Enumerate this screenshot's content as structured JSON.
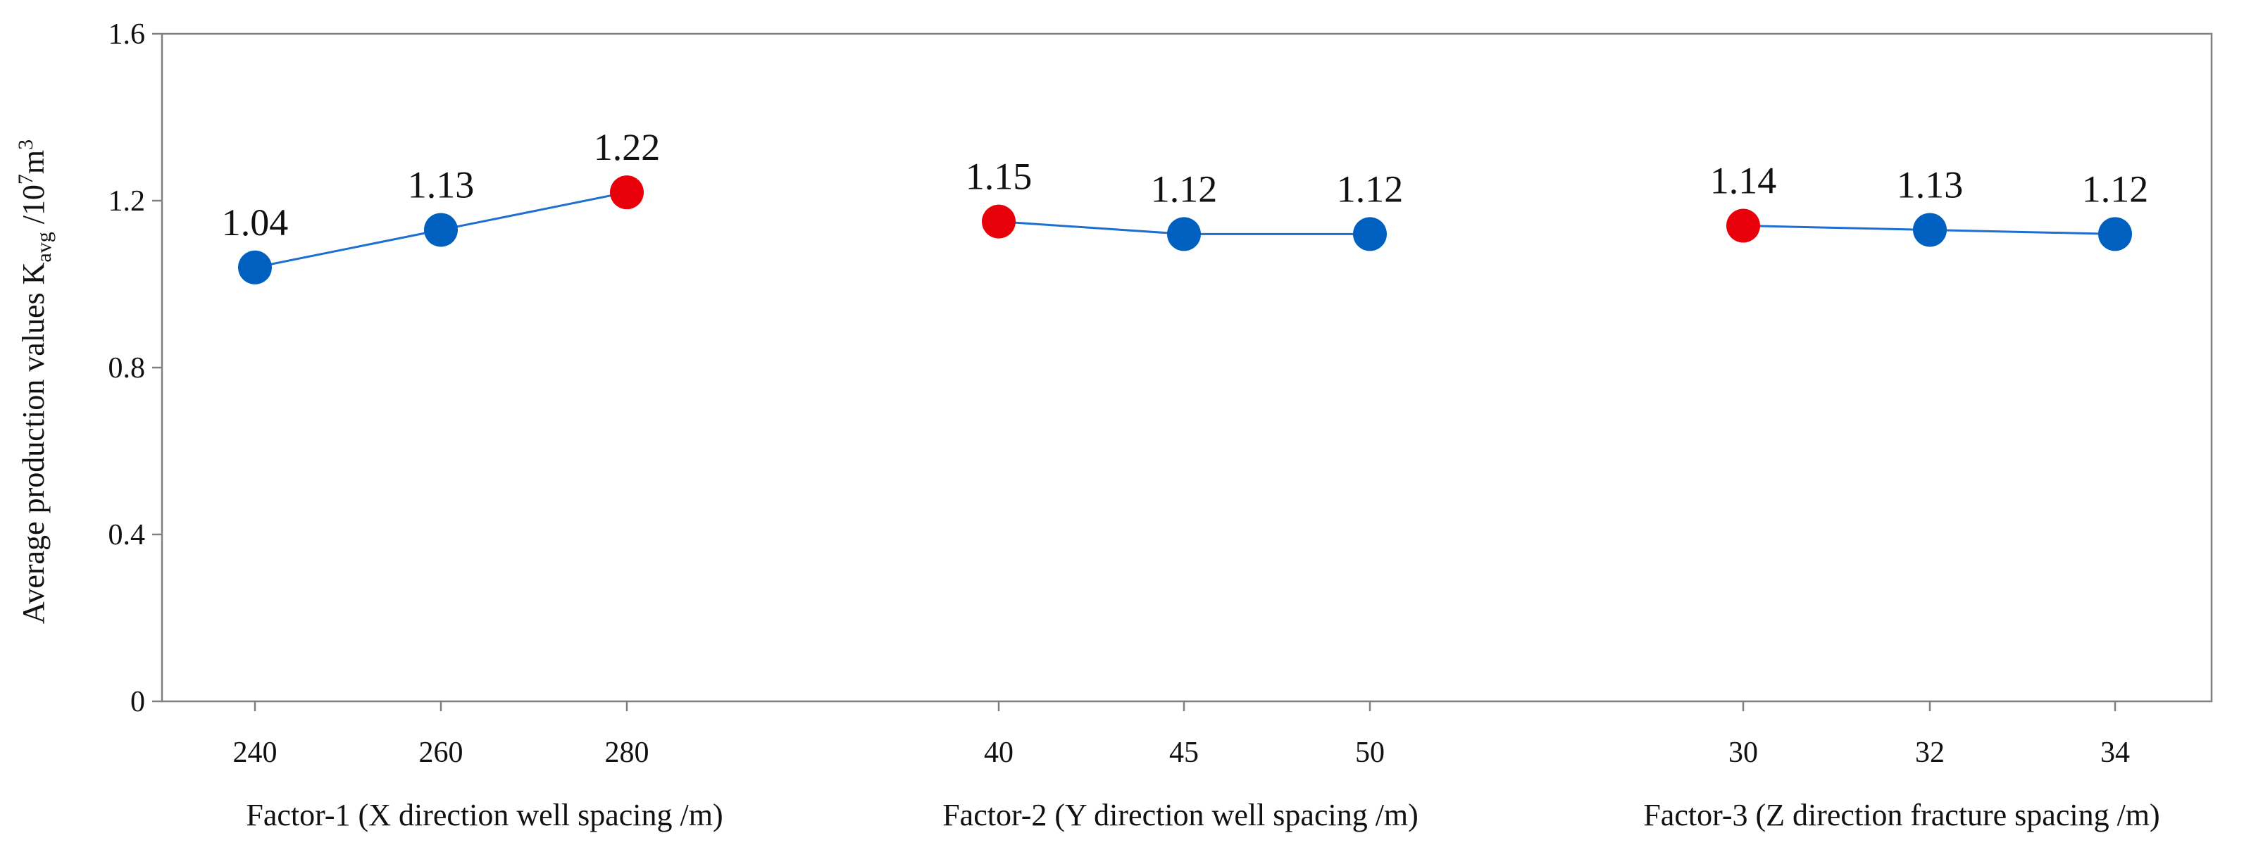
{
  "chart_data": {
    "type": "line",
    "title": "",
    "ylabel": {
      "text": "Average production values K",
      "subscript": "avg",
      "unit_prefix": "/10",
      "unit_exp": "7",
      "unit_base": "m",
      "unit_base_exp": "3"
    },
    "ylim": [
      0,
      1.6
    ],
    "yticks": [
      "0",
      "0.4",
      "0.8",
      "1.2",
      "1.6"
    ],
    "ytick_values": [
      0,
      0.4,
      0.8,
      1.2,
      1.6
    ],
    "grid": false,
    "legend": "none",
    "groups": [
      {
        "xlabel": "Factor-1 (X direction well spacing /m)",
        "categories": [
          "240",
          "260",
          "280"
        ],
        "values": [
          1.04,
          1.13,
          1.22
        ],
        "labels": [
          "1.04",
          "1.13",
          "1.22"
        ],
        "highlight_index": 2
      },
      {
        "xlabel": "Factor-2 (Y direction well spacing /m)",
        "categories": [
          "40",
          "45",
          "50"
        ],
        "values": [
          1.15,
          1.12,
          1.12
        ],
        "labels": [
          "1.15",
          "1.12",
          "1.12"
        ],
        "highlight_index": 0
      },
      {
        "xlabel": "Factor-3 (Z direction fracture spacing /m)",
        "categories": [
          "30",
          "32",
          "34"
        ],
        "values": [
          1.14,
          1.13,
          1.12
        ],
        "labels": [
          "1.14",
          "1.13",
          "1.12"
        ],
        "highlight_index": 0
      }
    ],
    "colors": {
      "point": "#0060c0",
      "highlight": "#e8000b",
      "line": "#1f6fd0",
      "axis": "#808080",
      "text": "#111111"
    }
  }
}
